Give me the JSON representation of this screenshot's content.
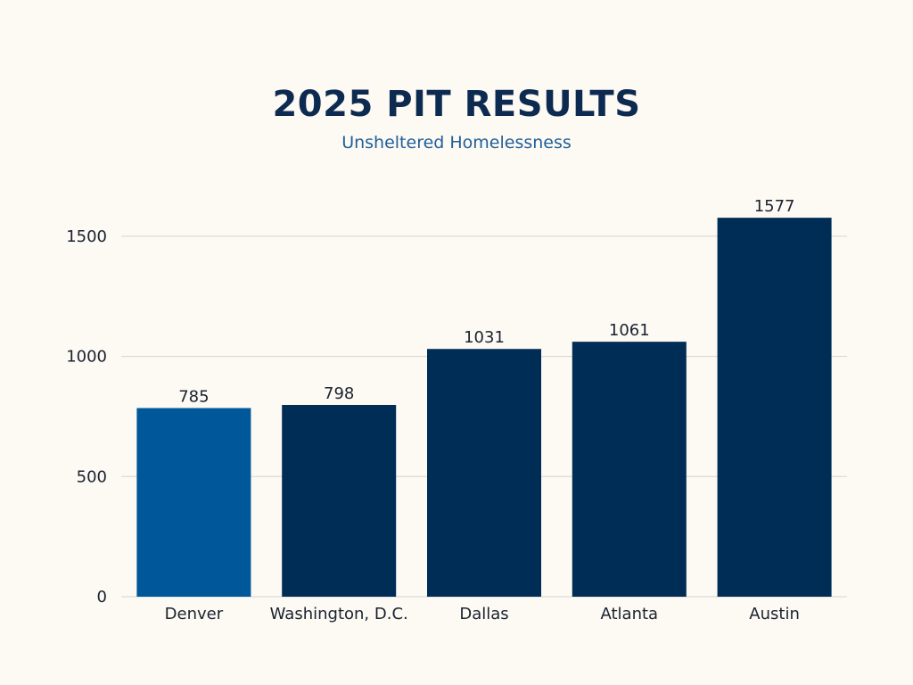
{
  "chart_data": {
    "type": "bar",
    "title": "2025 PIT RESULTS",
    "subtitle": "Unsheltered Homelessness",
    "xlabel": "",
    "ylabel": "",
    "categories": [
      "Denver",
      "Washington, D.C.",
      "Dallas",
      "Atlanta",
      "Austin"
    ],
    "values": [
      785,
      798,
      1031,
      1061,
      1577
    ],
    "data_labels": [
      "785",
      "798",
      "1031",
      "1061",
      "1577"
    ],
    "ylim": [
      0,
      1700
    ],
    "yticks": [
      0,
      500,
      1000,
      1500
    ],
    "ytick_labels": [
      "0",
      "500",
      "1000",
      "1500"
    ],
    "grid": true,
    "legend": "none",
    "bar_colors": [
      "#00579a",
      "#002d55",
      "#002d55",
      "#002d55",
      "#002d55"
    ],
    "gridline_color": "#d4d4d4",
    "background_color": "#fdf9f3"
  }
}
